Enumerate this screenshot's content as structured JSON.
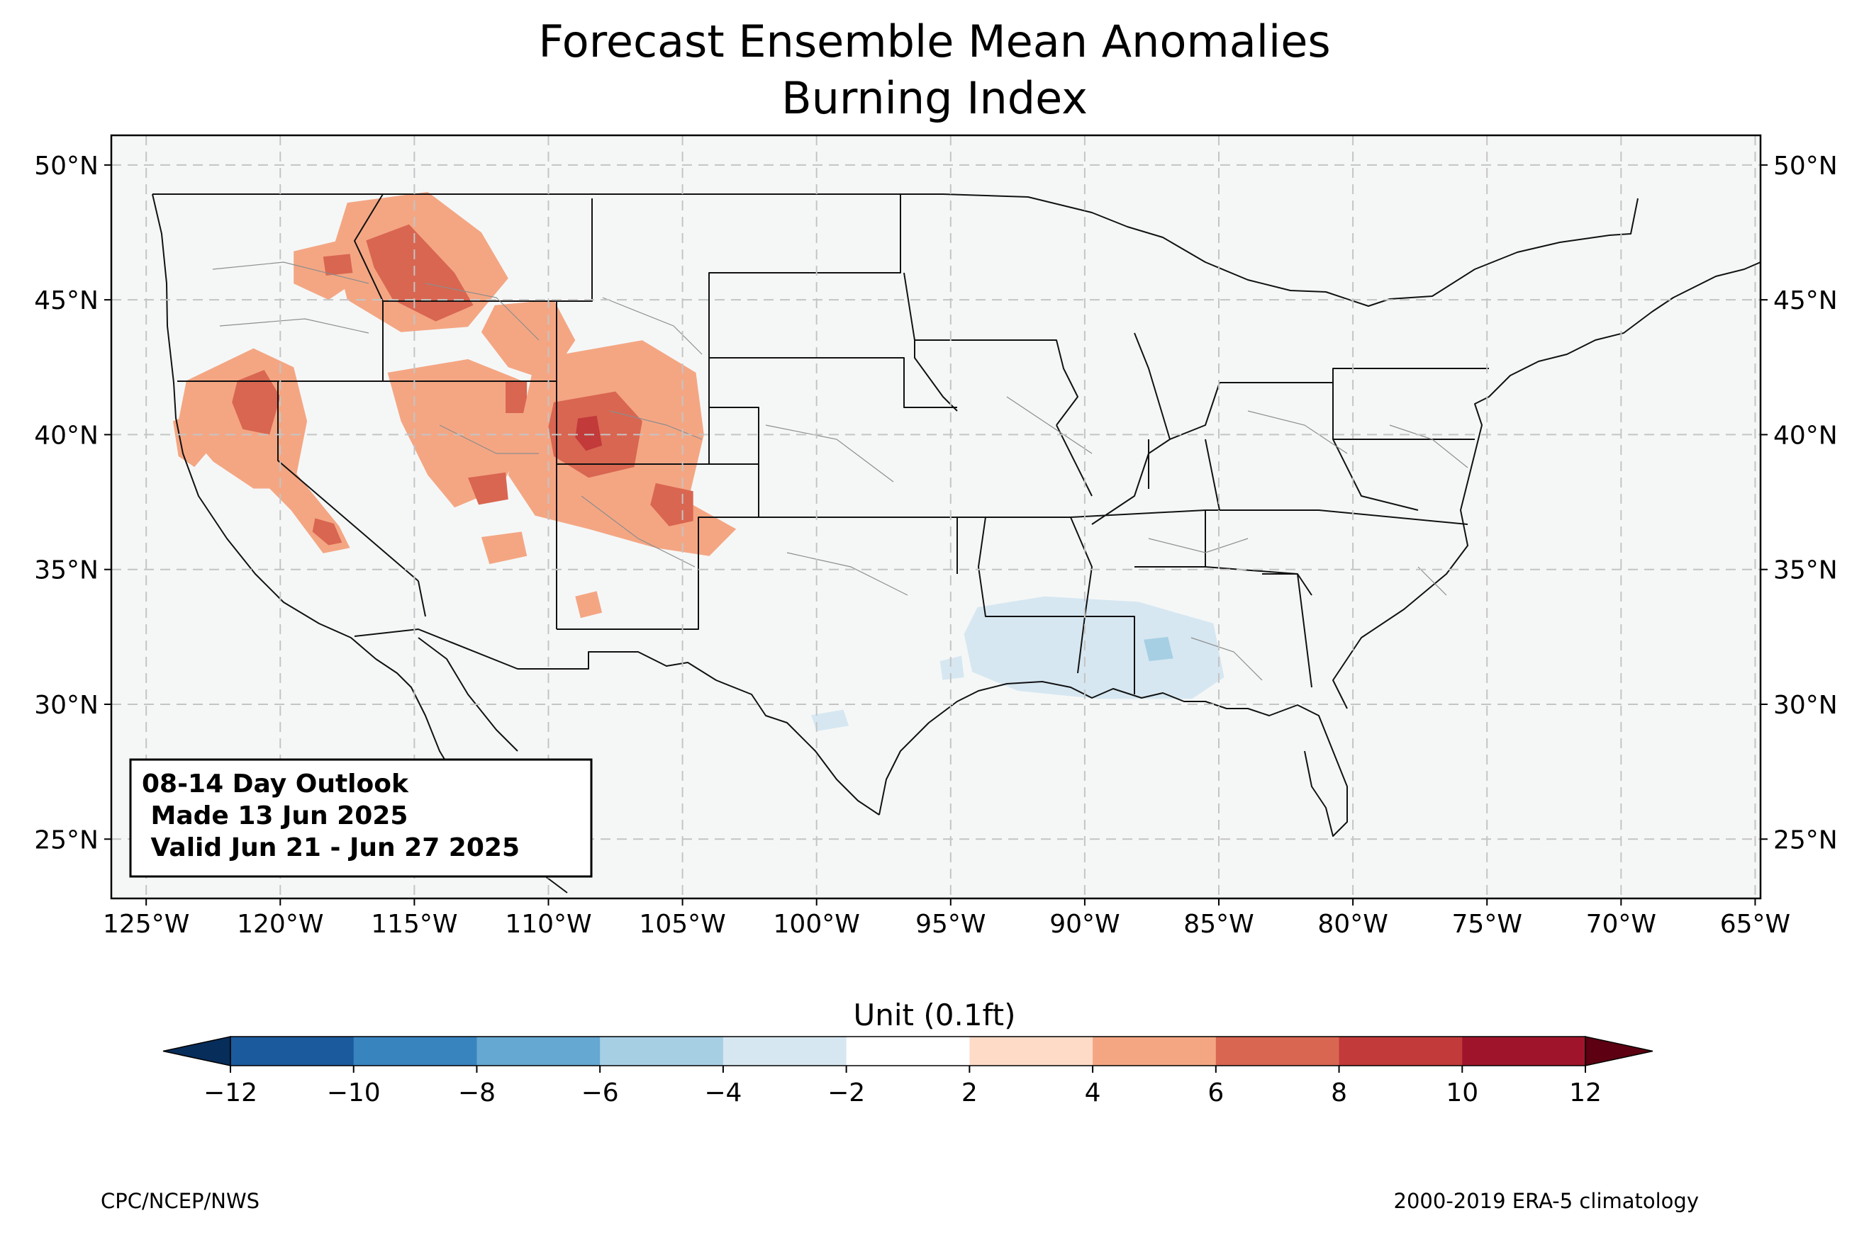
{
  "title": {
    "line1": "Forecast Ensemble Mean Anomalies",
    "line2": "Burning Index"
  },
  "map": {
    "extent_lon": [
      -126.3,
      -64.8
    ],
    "extent_lat": [
      22.8,
      51.1
    ],
    "lat_ticks": [
      {
        "value": 25,
        "label": "25°N"
      },
      {
        "value": 30,
        "label": "30°N"
      },
      {
        "value": 35,
        "label": "35°N"
      },
      {
        "value": 40,
        "label": "40°N"
      },
      {
        "value": 45,
        "label": "45°N"
      },
      {
        "value": 50,
        "label": "50°N"
      }
    ],
    "lon_ticks": [
      {
        "value": -125,
        "label": "125°W"
      },
      {
        "value": -120,
        "label": "120°W"
      },
      {
        "value": -115,
        "label": "115°W"
      },
      {
        "value": -110,
        "label": "110°W"
      },
      {
        "value": -105,
        "label": "105°W"
      },
      {
        "value": -100,
        "label": "100°W"
      },
      {
        "value": -95,
        "label": "95°W"
      },
      {
        "value": -90,
        "label": "90°W"
      },
      {
        "value": -85,
        "label": "85°W"
      },
      {
        "value": -80,
        "label": "80°W"
      },
      {
        "value": -75,
        "label": "75°W"
      },
      {
        "value": -70,
        "label": "70°W"
      },
      {
        "value": -65,
        "label": "65°W"
      }
    ],
    "gridlines": true,
    "anomaly_regions": [
      {
        "name": "northern-idaho-montana",
        "level": 4,
        "lonlat": [
          [
            -117.5,
            48.6
          ],
          [
            -114.5,
            49.0
          ],
          [
            -112.5,
            47.5
          ],
          [
            -111.5,
            45.8
          ],
          [
            -113.0,
            44.0
          ],
          [
            -115.5,
            43.8
          ],
          [
            -117.5,
            45.0
          ],
          [
            -118.0,
            47.0
          ]
        ]
      },
      {
        "name": "central-idaho-core",
        "level": 6,
        "lonlat": [
          [
            -116.8,
            47.2
          ],
          [
            -115.2,
            47.8
          ],
          [
            -113.5,
            46.0
          ],
          [
            -112.8,
            44.8
          ],
          [
            -114.2,
            44.2
          ],
          [
            -115.8,
            45.0
          ],
          [
            -116.5,
            46.2
          ]
        ]
      },
      {
        "name": "oregon-blue-mountains",
        "level": 4,
        "lonlat": [
          [
            -119.5,
            46.8
          ],
          [
            -117.8,
            47.2
          ],
          [
            -117.0,
            45.8
          ],
          [
            -118.2,
            45.0
          ],
          [
            -119.5,
            45.6
          ]
        ]
      },
      {
        "name": "oregon-hotspot",
        "level": 6,
        "lonlat": [
          [
            -118.4,
            46.6
          ],
          [
            -117.4,
            46.7
          ],
          [
            -117.3,
            46.0
          ],
          [
            -118.3,
            45.9
          ]
        ]
      },
      {
        "name": "northern-california-nevada",
        "level": 4,
        "lonlat": [
          [
            -123.5,
            42.0
          ],
          [
            -121.0,
            43.2
          ],
          [
            -119.5,
            42.5
          ],
          [
            -119.0,
            40.5
          ],
          [
            -119.5,
            38.0
          ],
          [
            -121.0,
            38.0
          ],
          [
            -122.5,
            39.0
          ],
          [
            -123.8,
            40.5
          ]
        ]
      },
      {
        "name": "northern-california-core",
        "level": 6,
        "lonlat": [
          [
            -121.6,
            42.0
          ],
          [
            -120.6,
            42.4
          ],
          [
            -120.0,
            41.4
          ],
          [
            -120.4,
            40.0
          ],
          [
            -121.4,
            40.2
          ],
          [
            -121.8,
            41.2
          ]
        ]
      },
      {
        "name": "sierra-nevada",
        "level": 4,
        "lonlat": [
          [
            -120.5,
            39.0
          ],
          [
            -119.6,
            38.8
          ],
          [
            -117.8,
            36.6
          ],
          [
            -117.4,
            35.8
          ],
          [
            -118.4,
            35.6
          ],
          [
            -119.6,
            37.2
          ],
          [
            -120.8,
            38.4
          ]
        ]
      },
      {
        "name": "southern-sierra-core",
        "level": 6,
        "lonlat": [
          [
            -118.7,
            36.9
          ],
          [
            -118.0,
            36.7
          ],
          [
            -117.7,
            36.0
          ],
          [
            -118.2,
            35.9
          ],
          [
            -118.8,
            36.4
          ]
        ]
      },
      {
        "name": "central-california-coast",
        "level": 4,
        "lonlat": [
          [
            -124.0,
            40.5
          ],
          [
            -123.2,
            40.8
          ],
          [
            -122.6,
            39.5
          ],
          [
            -123.2,
            38.8
          ],
          [
            -123.8,
            39.2
          ]
        ]
      },
      {
        "name": "great-basin-utah",
        "level": 4,
        "lonlat": [
          [
            -116.0,
            42.3
          ],
          [
            -113.0,
            42.8
          ],
          [
            -111.0,
            42.0
          ],
          [
            -110.5,
            40.5
          ],
          [
            -111.8,
            38.0
          ],
          [
            -113.5,
            37.3
          ],
          [
            -114.5,
            38.5
          ],
          [
            -115.5,
            40.5
          ]
        ]
      },
      {
        "name": "wasatch-core",
        "level": 6,
        "lonlat": [
          [
            -111.6,
            42.0
          ],
          [
            -110.8,
            42.0
          ],
          [
            -110.8,
            40.8
          ],
          [
            -111.6,
            40.8
          ]
        ]
      },
      {
        "name": "wyoming-idaho-border",
        "level": 4,
        "lonlat": [
          [
            -112.0,
            44.8
          ],
          [
            -109.8,
            45.0
          ],
          [
            -109.0,
            43.5
          ],
          [
            -110.0,
            42.0
          ],
          [
            -111.5,
            42.5
          ],
          [
            -112.5,
            43.8
          ]
        ]
      },
      {
        "name": "colorado-utah-border",
        "level": 4,
        "lonlat": [
          [
            -110.5,
            42.8
          ],
          [
            -106.5,
            43.5
          ],
          [
            -104.5,
            42.3
          ],
          [
            -104.2,
            40.0
          ],
          [
            -104.8,
            37.5
          ],
          [
            -103.0,
            36.5
          ],
          [
            -104.0,
            35.5
          ],
          [
            -106.0,
            35.8
          ],
          [
            -108.5,
            36.5
          ],
          [
            -110.5,
            37.0
          ],
          [
            -111.5,
            38.5
          ],
          [
            -111.0,
            40.5
          ]
        ]
      },
      {
        "name": "western-colorado-core",
        "level": 6,
        "lonlat": [
          [
            -109.8,
            41.2
          ],
          [
            -107.5,
            41.6
          ],
          [
            -106.5,
            40.5
          ],
          [
            -106.8,
            38.8
          ],
          [
            -108.5,
            38.4
          ],
          [
            -109.8,
            39.2
          ],
          [
            -110.0,
            40.3
          ]
        ]
      },
      {
        "name": "western-colorado-peak",
        "level": 8,
        "lonlat": [
          [
            -108.9,
            40.6
          ],
          [
            -108.2,
            40.7
          ],
          [
            -108.0,
            39.6
          ],
          [
            -108.6,
            39.4
          ],
          [
            -109.0,
            39.9
          ]
        ]
      },
      {
        "name": "southern-colorado-core",
        "level": 6,
        "lonlat": [
          [
            -106.0,
            38.2
          ],
          [
            -104.6,
            37.9
          ],
          [
            -104.6,
            36.8
          ],
          [
            -105.5,
            36.6
          ],
          [
            -106.2,
            37.4
          ]
        ]
      },
      {
        "name": "utah-plateau-core",
        "level": 6,
        "lonlat": [
          [
            -113.0,
            38.4
          ],
          [
            -111.6,
            38.6
          ],
          [
            -111.5,
            37.6
          ],
          [
            -112.6,
            37.4
          ]
        ]
      },
      {
        "name": "northern-arizona",
        "level": 4,
        "lonlat": [
          [
            -112.5,
            36.2
          ],
          [
            -111.0,
            36.4
          ],
          [
            -110.8,
            35.5
          ],
          [
            -112.2,
            35.2
          ]
        ]
      },
      {
        "name": "arizona-new-mexico-spot",
        "level": 4,
        "lonlat": [
          [
            -109.0,
            34.0
          ],
          [
            -108.2,
            34.2
          ],
          [
            -108.0,
            33.4
          ],
          [
            -108.8,
            33.2
          ]
        ]
      },
      {
        "name": "mississippi-alabama",
        "level": -4,
        "lonlat": [
          [
            -94.0,
            33.6
          ],
          [
            -91.5,
            34.0
          ],
          [
            -88.0,
            33.8
          ],
          [
            -85.2,
            33.0
          ],
          [
            -84.8,
            31.0
          ],
          [
            -86.0,
            30.2
          ],
          [
            -89.5,
            30.2
          ],
          [
            -92.5,
            30.5
          ],
          [
            -94.2,
            31.2
          ],
          [
            -94.5,
            32.6
          ]
        ]
      },
      {
        "name": "alabama-core",
        "level": -6,
        "lonlat": [
          [
            -87.8,
            32.4
          ],
          [
            -86.9,
            32.5
          ],
          [
            -86.7,
            31.7
          ],
          [
            -87.6,
            31.6
          ]
        ]
      },
      {
        "name": "louisiana-west-spot",
        "level": -4,
        "lonlat": [
          [
            -95.4,
            31.6
          ],
          [
            -94.6,
            31.8
          ],
          [
            -94.5,
            31.0
          ],
          [
            -95.3,
            30.9
          ]
        ]
      },
      {
        "name": "texas-coast-spot",
        "level": -4,
        "lonlat": [
          [
            -100.2,
            29.6
          ],
          [
            -99.0,
            29.8
          ],
          [
            -98.8,
            29.2
          ],
          [
            -100.0,
            29.0
          ]
        ]
      }
    ]
  },
  "outlook_box": {
    "line1": "08-14 Day Outlook",
    "line2": " Made 13 Jun 2025",
    "line3": " Valid Jun 21 - Jun 27 2025"
  },
  "colorbar": {
    "label": "Unit (0.1ft)",
    "levels": [
      -12,
      -10,
      -8,
      -6,
      -4,
      -2,
      2,
      4,
      6,
      8,
      10,
      12
    ],
    "tick_labels": [
      "−12",
      "−10",
      "−8",
      "−6",
      "−4",
      "−2",
      "2",
      "4",
      "6",
      "8",
      "10",
      "12"
    ],
    "colors": [
      "#1b5a9c",
      "#3784bf",
      "#65a8d2",
      "#a6cfe4",
      "#d6e7f1",
      "#ffffff",
      "#fddbc7",
      "#f4a683",
      "#d96651",
      "#c23a3a",
      "#a0142b"
    ],
    "under_color": "#072d5a",
    "over_color": "#5c0012",
    "neutral_map_color": "#f5f7f7"
  },
  "footer": {
    "left": "CPC/NCEP/NWS",
    "right": "2000-2019 ERA-5 climatology"
  }
}
